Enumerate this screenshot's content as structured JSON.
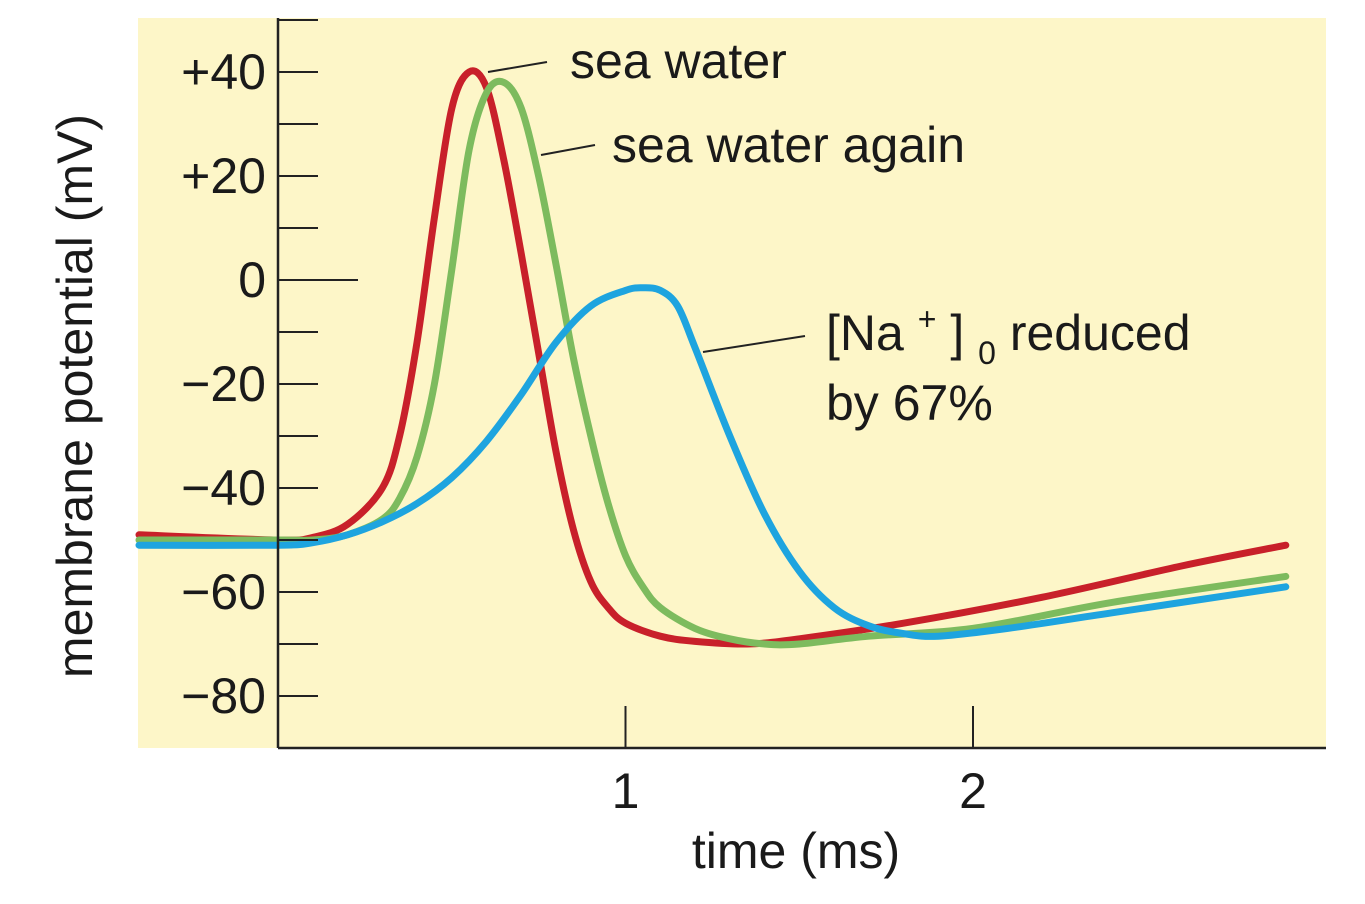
{
  "chart_data": {
    "type": "line",
    "title": "",
    "xlabel": "time (ms)",
    "ylabel": "membrane potential (mV)",
    "xlim": [
      -0.4,
      2.9
    ],
    "ylim": [
      -90,
      52
    ],
    "x_ticks": [
      1,
      2
    ],
    "x_tick_labels": [
      "1",
      "2"
    ],
    "y_ticks": [
      40,
      20,
      0,
      -20,
      -40,
      -60,
      -80
    ],
    "y_tick_labels": [
      "+40",
      "+20",
      "0",
      "−20",
      "−40",
      "−60",
      "−80"
    ],
    "y_minor_ticks": [
      50,
      30,
      10,
      -10,
      -30,
      -50,
      -70
    ],
    "background_color": "#fdf6c8",
    "grid": false,
    "legend": "none",
    "series": [
      {
        "name": "sea water",
        "color": "#c8202a",
        "x": [
          -0.4,
          0.0,
          0.1,
          0.2,
          0.3,
          0.35,
          0.4,
          0.45,
          0.5,
          0.55,
          0.6,
          0.65,
          0.7,
          0.75,
          0.8,
          0.85,
          0.9,
          0.95,
          1.0,
          1.1,
          1.2,
          1.35,
          1.5,
          1.8,
          2.2,
          2.6,
          2.9
        ],
        "y": [
          -49,
          -50,
          -49.5,
          -47,
          -40,
          -30,
          -12,
          12,
          33,
          40,
          37,
          23,
          5,
          -14,
          -33,
          -48,
          -58,
          -63,
          -66,
          -68.5,
          -69.5,
          -70,
          -69,
          -66,
          -61,
          -55,
          -51
        ]
      },
      {
        "name": "sea water again",
        "color": "#7dbb5e",
        "x": [
          -0.4,
          0.0,
          0.1,
          0.2,
          0.3,
          0.35,
          0.4,
          0.45,
          0.5,
          0.55,
          0.6,
          0.65,
          0.7,
          0.75,
          0.8,
          0.85,
          0.9,
          0.95,
          1.0,
          1.05,
          1.1,
          1.2,
          1.3,
          1.4,
          1.5,
          1.7,
          2.0,
          2.4,
          2.9
        ],
        "y": [
          -50,
          -50,
          -50,
          -49,
          -46,
          -42,
          -34,
          -20,
          2,
          25,
          36,
          38,
          33,
          20,
          3,
          -15,
          -30,
          -43,
          -53,
          -59,
          -63,
          -67,
          -69,
          -70,
          -70,
          -68.5,
          -67,
          -62,
          -57
        ]
      },
      {
        "name": "[Na⁺]₀ reduced by 67%",
        "color": "#1ea4df",
        "x": [
          -0.4,
          0.0,
          0.1,
          0.2,
          0.3,
          0.4,
          0.5,
          0.6,
          0.7,
          0.8,
          0.9,
          1.0,
          1.05,
          1.1,
          1.15,
          1.2,
          1.3,
          1.4,
          1.5,
          1.6,
          1.7,
          1.8,
          1.9,
          2.1,
          2.4,
          2.9
        ],
        "y": [
          -51,
          -51,
          -50.5,
          -49,
          -46.5,
          -43,
          -38,
          -31,
          -22,
          -12,
          -5,
          -2,
          -1.5,
          -2,
          -5,
          -13,
          -30,
          -45,
          -56,
          -63,
          -66.5,
          -68,
          -68.5,
          -67,
          -64,
          -59
        ]
      }
    ],
    "annotations": [
      {
        "text": "sea water",
        "series": "sea water"
      },
      {
        "text": "sea water again",
        "series": "sea water again"
      },
      {
        "line1_prefix": "[Na",
        "superscript": "+",
        "bracket": "]",
        "subscript": "0",
        "line1_suffix": " reduced",
        "line2": "by 67%",
        "series": "[Na⁺]₀ reduced by 67%"
      }
    ]
  }
}
